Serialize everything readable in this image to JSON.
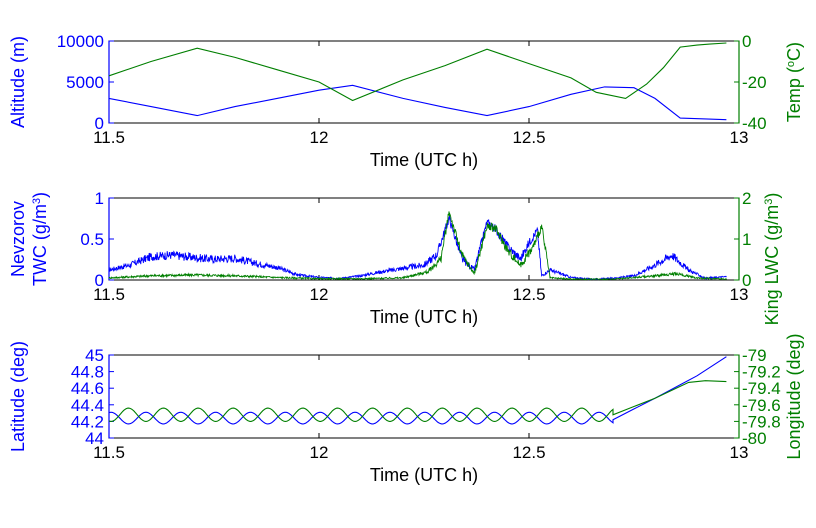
{
  "chart_data": [
    {
      "type": "line",
      "xlabel": "Time (UTC h)",
      "xlim": [
        11.5,
        13
      ],
      "x_ticks": [
        "11.5",
        "12",
        "12.5",
        "13"
      ],
      "left_axis": {
        "label": "Altitude (m)",
        "ylim": [
          0,
          10000
        ],
        "ticks": [
          "0",
          "5000",
          "10000"
        ],
        "color": "#0000ff"
      },
      "right_axis": {
        "label_prefix": "Temp (",
        "label_sup": "o",
        "label_suffix": "C)",
        "ylim": [
          -40,
          0
        ],
        "ticks": [
          "-40",
          "-20",
          "0"
        ],
        "color": "#007f00"
      },
      "series": [
        {
          "axis": "left",
          "color": "#0000ff",
          "x": [
            11.5,
            11.6,
            11.71,
            11.8,
            11.9,
            12.0,
            12.08,
            12.2,
            12.3,
            12.4,
            12.5,
            12.6,
            12.68,
            12.75,
            12.8,
            12.86,
            12.92,
            12.97
          ],
          "y": [
            3000,
            2000,
            900,
            2000,
            3000,
            4000,
            4600,
            3000,
            1900,
            900,
            2000,
            3500,
            4400,
            4300,
            3000,
            600,
            500,
            400
          ]
        },
        {
          "axis": "right",
          "color": "#007f00",
          "x": [
            11.5,
            11.6,
            11.71,
            11.8,
            11.9,
            12.0,
            12.08,
            12.2,
            12.3,
            12.4,
            12.5,
            12.6,
            12.66,
            12.73,
            12.78,
            12.82,
            12.86,
            12.9,
            12.93,
            12.97
          ],
          "y": [
            -17,
            -10,
            -3.5,
            -8,
            -14,
            -20,
            -29,
            -19,
            -12,
            -4,
            -11,
            -18,
            -25,
            -28,
            -21,
            -13,
            -3,
            -2,
            -1.5,
            -1
          ]
        }
      ]
    },
    {
      "type": "line",
      "xlabel": "Time (UTC h)",
      "xlim": [
        11.5,
        13
      ],
      "x_ticks": [
        "11.5",
        "12",
        "12.5",
        "13"
      ],
      "left_axis": {
        "label_line1": "Nevzorov",
        "label_prefix": "TWC (g/m",
        "label_sup": "3",
        "label_suffix": ")",
        "ylim": [
          0,
          1
        ],
        "ticks": [
          "0",
          "0.5",
          "1"
        ],
        "color": "#0000ff"
      },
      "right_axis": {
        "label_prefix": "King LWC (g/m",
        "label_sup": "3",
        "label_suffix": ")",
        "ylim": [
          0,
          2
        ],
        "ticks": [
          "0",
          "1",
          "2"
        ],
        "color": "#007f00"
      },
      "series": [
        {
          "axis": "left",
          "color": "#0000ff",
          "x": [
            11.5,
            11.55,
            11.6,
            11.65,
            11.7,
            11.75,
            11.8,
            11.85,
            11.9,
            11.95,
            12.0,
            12.05,
            12.1,
            12.15,
            12.2,
            12.25,
            12.28,
            12.31,
            12.34,
            12.37,
            12.4,
            12.42,
            12.45,
            12.48,
            12.5,
            12.52,
            12.53,
            12.55,
            12.6,
            12.65,
            12.7,
            12.75,
            12.8,
            12.84,
            12.88,
            12.92,
            12.97
          ],
          "y": [
            0.12,
            0.18,
            0.28,
            0.3,
            0.27,
            0.25,
            0.26,
            0.2,
            0.15,
            0.06,
            0.03,
            0.02,
            0.05,
            0.1,
            0.14,
            0.18,
            0.3,
            0.75,
            0.25,
            0.12,
            0.7,
            0.62,
            0.4,
            0.25,
            0.45,
            0.6,
            0.05,
            0.12,
            0.03,
            0.01,
            0.02,
            0.05,
            0.18,
            0.3,
            0.12,
            0.02,
            0.04
          ]
        },
        {
          "axis": "right",
          "color": "#007f00",
          "x": [
            11.5,
            11.6,
            11.7,
            11.8,
            11.9,
            12.0,
            12.1,
            12.2,
            12.26,
            12.29,
            12.31,
            12.34,
            12.37,
            12.4,
            12.42,
            12.45,
            12.48,
            12.51,
            12.53,
            12.55,
            12.6,
            12.7,
            12.8,
            12.85,
            12.9,
            12.97
          ],
          "y": [
            0.05,
            0.1,
            0.12,
            0.1,
            0.06,
            0.03,
            0.03,
            0.05,
            0.2,
            0.5,
            1.65,
            0.6,
            0.15,
            1.3,
            1.25,
            0.7,
            0.35,
            0.8,
            1.3,
            0.05,
            0.02,
            0.02,
            0.1,
            0.15,
            0.05,
            0.02
          ]
        }
      ]
    },
    {
      "type": "line",
      "xlabel": "Time (UTC h)",
      "xlim": [
        11.5,
        13
      ],
      "x_ticks": [
        "11.5",
        "12",
        "12.5",
        "13"
      ],
      "left_axis": {
        "label": "Latitude (deg)",
        "ylim": [
          44,
          45
        ],
        "ticks": [
          "44",
          "44.2",
          "44.4",
          "44.6",
          "44.8",
          "45"
        ],
        "color": "#0000ff"
      },
      "right_axis": {
        "label": "Longitude (deg)",
        "ylim": [
          -80,
          -79
        ],
        "ticks": [
          "-80",
          "-79.8",
          "-79.6",
          "-79.4",
          "-79.2",
          "-79"
        ],
        "color": "#007f00"
      },
      "series": [
        {
          "axis": "left",
          "color": "#0000ff",
          "kind": "oscillation",
          "x_start": 11.5,
          "x_end": 12.7,
          "center": 44.24,
          "amplitude": 0.07,
          "period": 0.083,
          "phase": 0,
          "x_tail": [
            12.7,
            12.8,
            12.9,
            12.97
          ],
          "y_tail": [
            44.22,
            44.48,
            44.75,
            44.98
          ]
        },
        {
          "axis": "right",
          "color": "#007f00",
          "kind": "oscillation",
          "x_start": 11.5,
          "x_end": 12.7,
          "center": -79.72,
          "amplitude": 0.08,
          "period": 0.083,
          "phase": 0.5,
          "x_tail": [
            12.7,
            12.8,
            12.88,
            12.92,
            12.97
          ],
          "y_tail": [
            -79.72,
            -79.52,
            -79.33,
            -79.31,
            -79.32
          ]
        }
      ]
    }
  ]
}
